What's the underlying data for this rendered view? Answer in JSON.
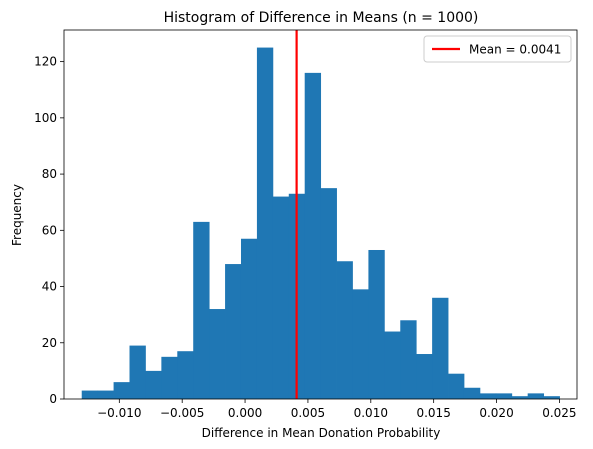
{
  "chart_data": {
    "type": "histogram",
    "title": "Histogram of Difference in Means (n = 1000)",
    "xlabel": "Difference in Mean Donation Probability",
    "ylabel": "Frequency",
    "xlim": [
      -0.0144,
      0.0264
    ],
    "ylim": [
      0,
      131.25
    ],
    "xticks": [
      -0.01,
      -0.005,
      0.0,
      0.005,
      0.01,
      0.015,
      0.02,
      0.025
    ],
    "xtick_labels": [
      "−0.010",
      "−0.005",
      "0.000",
      "0.005",
      "0.010",
      "0.015",
      "0.020",
      "0.025"
    ],
    "yticks": [
      0,
      20,
      40,
      60,
      80,
      100,
      120
    ],
    "ytick_labels": [
      "0",
      "20",
      "40",
      "60",
      "80",
      "100",
      "120"
    ],
    "bar_color": "#1f77b4",
    "bin_start": -0.01299,
    "bin_width": 0.0012667,
    "bin_counts": [
      3,
      3,
      6,
      19,
      10,
      15,
      17,
      63,
      32,
      48,
      57,
      125,
      72,
      73,
      116,
      75,
      49,
      39,
      53,
      24,
      28,
      16,
      36,
      9,
      4,
      2,
      2,
      1,
      2,
      1
    ],
    "mean_line": {
      "x": 0.0041,
      "color": "#ff0000",
      "label": "Mean = 0.0041"
    },
    "legend": {
      "position": "top-right",
      "entries": [
        "Mean = 0.0041"
      ]
    },
    "grid": false
  }
}
